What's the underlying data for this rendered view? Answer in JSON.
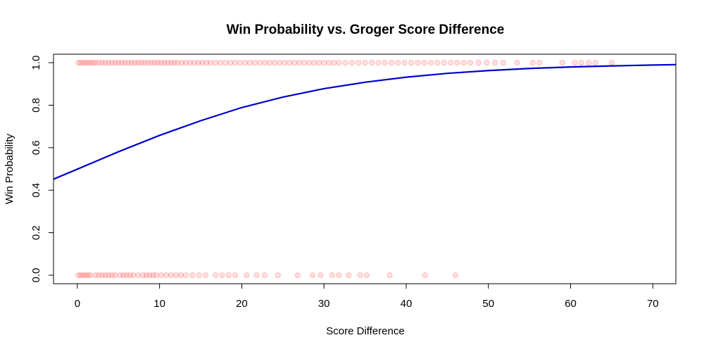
{
  "chart_data": {
    "type": "scatter",
    "title": "Win Probability vs. Groger Score Difference",
    "xlabel": "Score Difference",
    "ylabel": "Win Probability",
    "xlim": [
      -2.9,
      72.8
    ],
    "ylim": [
      -0.04,
      1.04
    ],
    "xticks": [
      0,
      10,
      20,
      30,
      40,
      50,
      60,
      70
    ],
    "yticks": [
      0.0,
      0.2,
      0.4,
      0.6,
      0.8,
      1.0
    ],
    "xtick_labels": [
      "0",
      "10",
      "20",
      "30",
      "40",
      "50",
      "60",
      "70"
    ],
    "ytick_labels": [
      "0.0",
      "0.2",
      "0.4",
      "0.6",
      "0.8",
      "1.0"
    ],
    "grid": false,
    "legend": "none",
    "colors": {
      "points": "#ff0000",
      "curve": "#0000cd",
      "axis": "#000000"
    },
    "series": [
      {
        "kind": "points",
        "y": 1,
        "x": [
          0.1,
          0.4,
          0.7,
          1.0,
          1.3,
          1.6,
          1.9,
          2.2,
          2.6,
          3.0,
          3.4,
          3.8,
          4.2,
          4.6,
          5.0,
          5.4,
          5.8,
          6.2,
          6.6,
          7.0,
          7.4,
          7.8,
          8.2,
          8.6,
          9.0,
          9.4,
          9.8,
          10.2,
          10.6,
          11.0,
          11.4,
          11.8,
          12.2,
          12.7,
          13.2,
          13.7,
          14.2,
          14.7,
          15.2,
          15.7,
          16.2,
          16.8,
          17.4,
          18.0,
          18.6,
          19.2,
          19.8,
          20.4,
          21.0,
          21.6,
          22.2,
          22.8,
          23.4,
          24.0,
          24.6,
          25.2,
          25.8,
          26.4,
          27.0,
          27.6,
          28.2,
          28.8,
          29.4,
          30.0,
          30.6,
          31.2,
          31.8,
          32.6,
          33.4,
          34.2,
          35.0,
          35.8,
          36.6,
          37.4,
          38.2,
          39.0,
          39.8,
          40.6,
          41.4,
          42.2,
          43.0,
          43.8,
          44.6,
          45.4,
          46.2,
          47.0,
          47.8,
          48.8,
          49.8,
          50.8,
          51.8,
          53.5,
          55.4,
          56.2,
          59.0,
          60.5,
          61.3,
          62.2,
          63.0,
          65.0
        ]
      },
      {
        "kind": "points",
        "y": 0,
        "x": [
          0.1,
          0.4,
          0.7,
          1.0,
          1.3,
          1.6,
          2.2,
          2.6,
          3.0,
          3.4,
          3.8,
          4.2,
          4.6,
          5.2,
          5.6,
          6.0,
          6.4,
          6.8,
          7.4,
          8.0,
          8.4,
          8.8,
          9.2,
          9.6,
          10.2,
          10.8,
          11.4,
          12.0,
          12.6,
          13.2,
          14.0,
          14.8,
          15.6,
          16.8,
          17.6,
          18.4,
          19.2,
          20.6,
          21.8,
          22.8,
          24.4,
          26.8,
          28.6,
          29.6,
          31.0,
          31.8,
          33.0,
          34.4,
          35.2,
          38.0,
          42.3,
          46.0
        ]
      },
      {
        "kind": "line",
        "name": "",
        "x": [
          -2.9,
          0,
          5,
          10,
          15,
          20,
          25,
          30,
          35,
          40,
          45,
          50,
          55,
          60,
          65,
          70,
          72.8
        ],
        "y": [
          0.452,
          0.499,
          0.581,
          0.658,
          0.727,
          0.789,
          0.838,
          0.878,
          0.908,
          0.932,
          0.95,
          0.963,
          0.973,
          0.98,
          0.985,
          0.989,
          0.991
        ]
      }
    ]
  }
}
